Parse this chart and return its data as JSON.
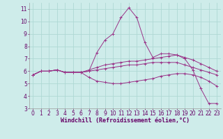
{
  "xlabel": "Windchill (Refroidissement éolien,°C)",
  "ylabel": "",
  "background_color": "#ceecea",
  "grid_color": "#aed8d4",
  "line_color": "#993388",
  "x_hours": [
    0,
    1,
    2,
    3,
    4,
    5,
    6,
    7,
    8,
    9,
    10,
    11,
    12,
    13,
    14,
    15,
    16,
    17,
    18,
    19,
    20,
    21,
    22,
    23
  ],
  "series_top": [
    5.7,
    6.0,
    6.0,
    6.1,
    5.9,
    5.9,
    5.9,
    6.0,
    7.5,
    8.5,
    9.0,
    10.3,
    11.1,
    10.3,
    8.3,
    7.1,
    7.4,
    7.4,
    7.3,
    7.0,
    6.1,
    4.6,
    3.4,
    3.4
  ],
  "series_mid_upper": [
    5.7,
    6.0,
    6.0,
    6.1,
    5.9,
    5.9,
    5.9,
    6.1,
    6.3,
    6.5,
    6.6,
    6.7,
    6.8,
    6.8,
    6.9,
    7.0,
    7.1,
    7.2,
    7.3,
    7.1,
    6.9,
    6.6,
    6.3,
    6.0
  ],
  "series_mid_lower": [
    5.7,
    6.0,
    6.0,
    6.1,
    5.9,
    5.9,
    5.9,
    6.0,
    6.1,
    6.2,
    6.3,
    6.4,
    6.5,
    6.5,
    6.6,
    6.7,
    6.7,
    6.7,
    6.7,
    6.5,
    6.3,
    6.1,
    5.9,
    5.7
  ],
  "series_bottom": [
    5.7,
    6.0,
    6.0,
    6.1,
    5.9,
    5.9,
    5.9,
    5.5,
    5.2,
    5.1,
    5.0,
    5.0,
    5.1,
    5.2,
    5.3,
    5.4,
    5.6,
    5.7,
    5.8,
    5.8,
    5.7,
    5.5,
    5.2,
    4.8
  ],
  "ylim": [
    3,
    11.5
  ],
  "yticks": [
    3,
    4,
    5,
    6,
    7,
    8,
    9,
    10,
    11
  ],
  "xticks": [
    0,
    1,
    2,
    3,
    4,
    5,
    6,
    7,
    8,
    9,
    10,
    11,
    12,
    13,
    14,
    15,
    16,
    17,
    18,
    19,
    20,
    21,
    22,
    23
  ],
  "title_fontsize": 6,
  "xlabel_fontsize": 6,
  "tick_fontsize": 5.5
}
